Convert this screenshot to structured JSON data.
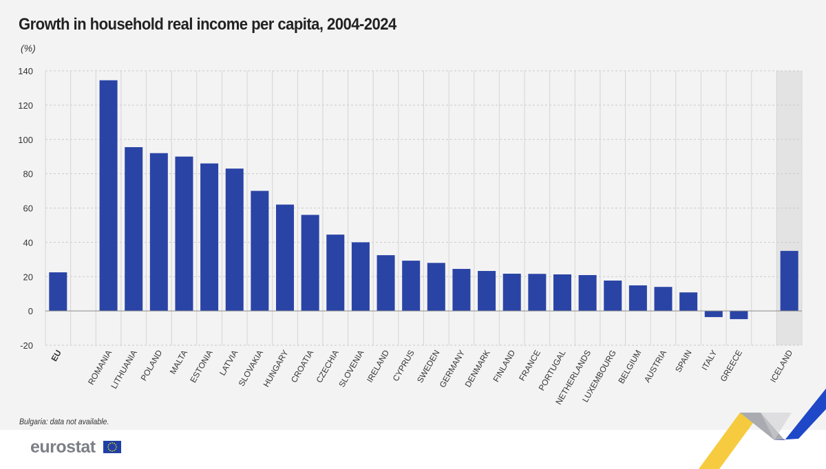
{
  "title": "Growth in household real income per capita, 2004-2024",
  "unit": "(%)",
  "note": "Bulgaria: data not available.",
  "logo": "eurostat",
  "colors": {
    "bar": "#2a44a6",
    "highlight_band": "#e3e3e3",
    "background": "#f3f3f3"
  },
  "chart_data": {
    "type": "bar",
    "title": "Growth in household real income per capita, 2004-2024",
    "ylabel": "(%)",
    "ylim": [
      -20,
      140
    ],
    "yticks": [
      -20,
      0,
      20,
      40,
      60,
      80,
      100,
      120,
      140
    ],
    "grid": true,
    "categories": [
      "EU",
      "ROMANIA",
      "LITHUANIA",
      "POLAND",
      "MALTA",
      "ESTONIA",
      "LATVIA",
      "SLOVAKIA",
      "HUNGARY",
      "CROATIA",
      "CZECHIA",
      "SLOVENIA",
      "IRELAND",
      "CYPRUS",
      "SWEDEN",
      "GERMANY",
      "DENMARK",
      "FINLAND",
      "FRANCE",
      "PORTUGAL",
      "NETHERLANDS",
      "LUXEMBOURG",
      "BELGIUM",
      "AUSTRIA",
      "SPAIN",
      "ITALY",
      "GREECE",
      "ICELAND"
    ],
    "values": [
      22.5,
      134.5,
      95.5,
      92,
      90,
      86,
      83,
      70,
      62,
      56,
      44.5,
      40,
      32.5,
      29.3,
      28,
      24.5,
      23.3,
      21.7,
      21.6,
      21.3,
      20.9,
      17.7,
      14.9,
      14,
      10.8,
      -3.6,
      -4.8,
      35
    ],
    "bold_categories": [
      "EU"
    ],
    "highlighted_categories": [
      "ICELAND"
    ]
  }
}
